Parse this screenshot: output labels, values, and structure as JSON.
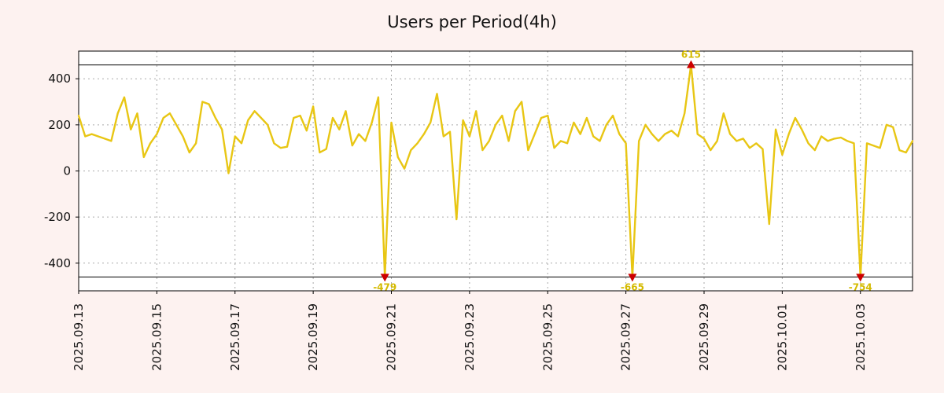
{
  "title": "Users per Period(4h)",
  "colors": {
    "background": "#fdf2f0",
    "plot_background": "#ffffff",
    "line": "#e8c614",
    "marker": "#cc0000",
    "annotation": "#d4ba00",
    "grid": "#aaaaaa",
    "axis": "#000000",
    "tick_text": "#111111"
  },
  "chart_data": {
    "type": "line",
    "title": "Users per Period(4h)",
    "period": "4h",
    "ylabel": "",
    "xlabel": "",
    "ylim": [
      -520,
      520
    ],
    "clip": [
      -460,
      460
    ],
    "yticks": [
      400,
      200,
      0,
      -200,
      -400
    ],
    "points_per_day": 6,
    "x_start_date": "2025.09.13",
    "xticks": [
      {
        "day": 0,
        "label": "2025.09.13"
      },
      {
        "day": 2,
        "label": "2025.09.15"
      },
      {
        "day": 4,
        "label": "2025.09.17"
      },
      {
        "day": 6,
        "label": "2025.09.19"
      },
      {
        "day": 8,
        "label": "2025.09.21"
      },
      {
        "day": 10,
        "label": "2025.09.23"
      },
      {
        "day": 12,
        "label": "2025.09.25"
      },
      {
        "day": 14,
        "label": "2025.09.27"
      },
      {
        "day": 16,
        "label": "2025.09.29"
      },
      {
        "day": 18,
        "label": "2025.10.01"
      },
      {
        "day": 20,
        "label": "2025.10.03"
      }
    ],
    "values": [
      240,
      150,
      160,
      150,
      140,
      130,
      250,
      320,
      180,
      250,
      60,
      120,
      160,
      230,
      250,
      200,
      150,
      80,
      120,
      300,
      290,
      230,
      180,
      -10,
      150,
      120,
      220,
      260,
      230,
      200,
      120,
      100,
      105,
      230,
      240,
      175,
      280,
      80,
      95,
      230,
      180,
      260,
      110,
      160,
      130,
      210,
      320,
      -479,
      210,
      60,
      10,
      90,
      120,
      160,
      210,
      335,
      150,
      170,
      -210,
      220,
      150,
      260,
      90,
      130,
      200,
      240,
      130,
      260,
      300,
      90,
      160,
      230,
      240,
      100,
      130,
      120,
      210,
      160,
      230,
      150,
      130,
      200,
      240,
      160,
      120,
      -665,
      130,
      200,
      160,
      130,
      160,
      175,
      150,
      250,
      615,
      160,
      140,
      90,
      130,
      250,
      160,
      130,
      140,
      100,
      120,
      95,
      -230,
      180,
      70,
      160,
      230,
      180,
      120,
      90,
      150,
      130,
      140,
      145,
      130,
      120,
      -754,
      120,
      110,
      100,
      200,
      190,
      90,
      80,
      130
    ],
    "annotations": {
      "max": {
        "index": 94,
        "value": 615,
        "label": "615"
      },
      "mins": [
        {
          "index": 47,
          "value": -479,
          "label": "-479"
        },
        {
          "index": 85,
          "value": -665,
          "label": "-665"
        },
        {
          "index": 120,
          "value": -754,
          "label": "-754"
        }
      ]
    }
  }
}
